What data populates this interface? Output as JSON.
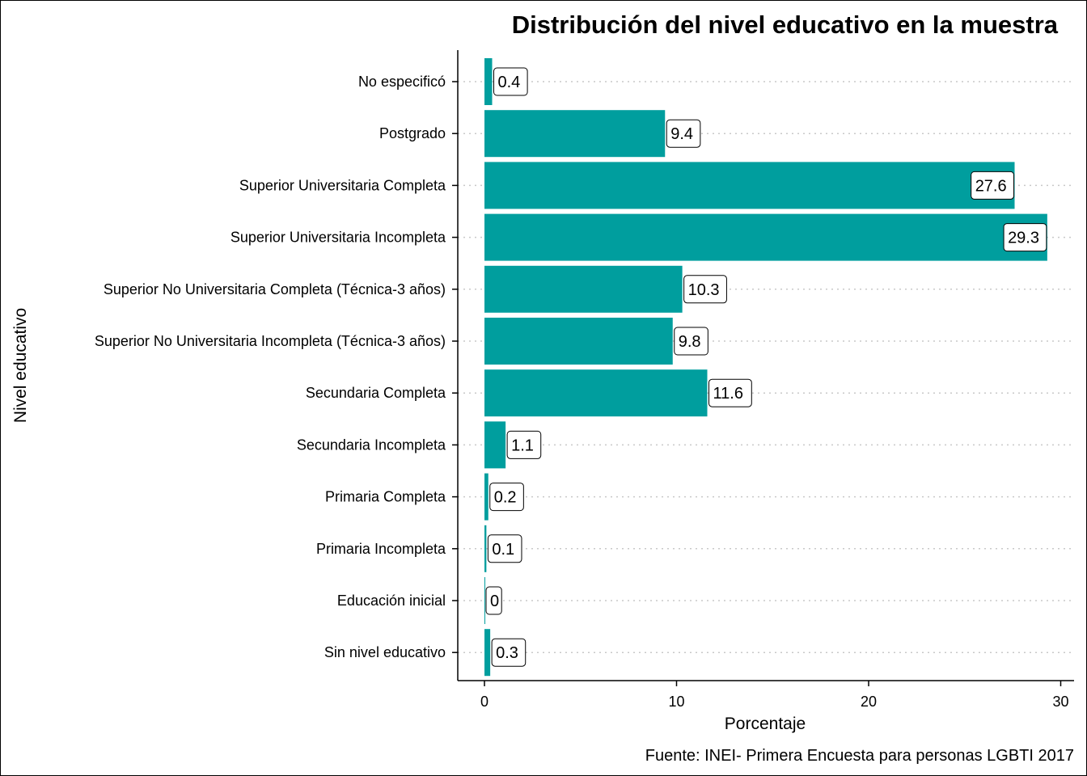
{
  "chart_data": {
    "type": "bar",
    "orientation": "horizontal",
    "title": "Distribución del nivel educativo en la muestra",
    "xlabel": "Porcentaje",
    "ylabel": "Nivel educativo",
    "caption": "Fuente: INEI- Primera Encuesta para personas LGBTI 2017",
    "xlim": [
      0,
      30
    ],
    "xticks": [
      0,
      10,
      20,
      30
    ],
    "bar_color": "#009E9E",
    "categories": [
      "No especificó",
      "Postgrado",
      "Superior Universitaria Completa",
      "Superior Universitaria Incompleta",
      "Superior No Universitaria Completa (Técnica-3 años)",
      "Superior No Universitaria Incompleta (Técnica-3 años)",
      "Secundaria Completa",
      "Secundaria Incompleta",
      "Primaria Completa",
      "Primaria Incompleta",
      "Educación inicial",
      "Sin nivel educativo"
    ],
    "values": [
      0.4,
      9.4,
      27.6,
      29.3,
      10.3,
      9.8,
      11.6,
      1.1,
      0.2,
      0.1,
      0,
      0.3
    ],
    "value_labels": [
      "0.4",
      "9.4",
      "27.6",
      "29.3",
      "10.3",
      "9.8",
      "11.6",
      "1.1",
      "0.2",
      "0.1",
      "0",
      "0.3"
    ]
  }
}
